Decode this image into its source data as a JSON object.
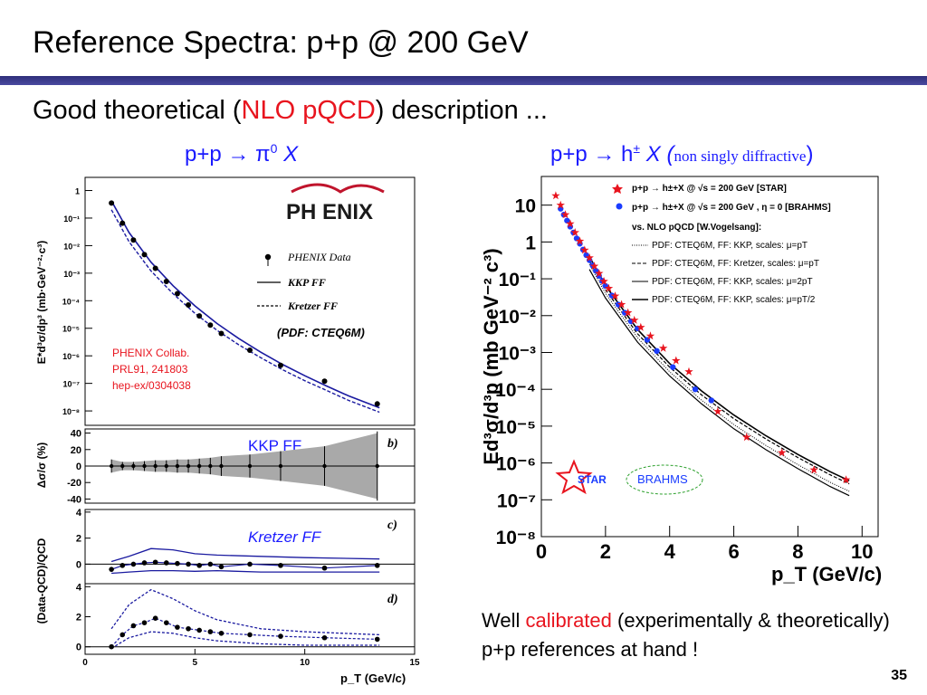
{
  "slide": {
    "title": "Reference Spectra: p+p @ 200 GeV",
    "subtitle_pre": "Good theoretical (",
    "subtitle_hl": "NLO pQCD",
    "subtitle_post": ") description ...",
    "footer_pre": "Well ",
    "footer_hl": "calibrated",
    "footer_post": " (experimentally & theoretically) p+p references at hand !",
    "page_number": "35",
    "colors": {
      "accent_red": "#e8141e",
      "panel_label_blue": "#1a1aff",
      "title_rule": "#2f2f7a"
    }
  },
  "left_panel": {
    "label_prefix": "p+p → π",
    "label_sup": "0",
    "label_suffix": " X",
    "logo_text": "PH ENIX",
    "legend": {
      "data": "PHENIX Data",
      "kkp": "KKP FF",
      "kretzer": "Kretzer FF",
      "pdf": "(PDF: CTEQ6M)"
    },
    "citation": [
      "PHENIX Collab.",
      "PRL91, 241803",
      "hep-ex/0304038"
    ],
    "ylabel_main": "E*d³σ/dp³ (mb·GeV⁻²·c³)",
    "ylabel_b": "Δσ/σ (%)",
    "ylabel_cd": "(Data-QCD)/QCD",
    "xlabel": "p_T (GeV/c)",
    "subpanel_b_label": "KKP  FF",
    "subpanel_c_label": "Kretzer FF",
    "panel_tags": [
      "b)",
      "c)",
      "d)"
    ]
  },
  "right_panel": {
    "label_prefix": "p+p → h",
    "label_sup": "±",
    "label_suffix": " X (",
    "label_small": "non singly diffractive",
    "label_close": ")",
    "ylabel": "Ed³σ/d³p (mb GeV⁻² c³)",
    "xlabel": "p_T (GeV/c)",
    "legend": [
      "p+p → h±+X @ √s = 200 GeV [STAR]",
      "p+p → h±+X @ √s = 200 GeV , η = 0 [BRAHMS]",
      "vs. NLO pQCD [W.Vogelsang]:",
      "PDF: CTEQ6M, FF: KKP, scales: μ=pT",
      "PDF: CTEQ6M, FF: Kretzer, scales: μ=pT",
      "PDF: CTEQ6M, FF: KKP, scales: μ=2pT",
      "PDF: CTEQ6M, FF: KKP, scales: μ=pT/2"
    ],
    "logos": {
      "star": "STAR",
      "brahms": "BRAHMS"
    }
  },
  "chart_data": [
    {
      "type": "scatter",
      "title": "p+p → π0 X",
      "xlabel": "pT (GeV/c)",
      "ylabel": "E*d3σ/dp3 (mb·GeV-2·c3)",
      "yscale": "log",
      "xlim": [
        0,
        15
      ],
      "ylim": [
        3e-09,
        3
      ],
      "x_ticks": [
        0,
        5,
        10,
        15
      ],
      "y_ticks": [
        "1",
        "10⁻¹",
        "10⁻²",
        "10⁻³",
        "10⁻⁴",
        "10⁻⁵",
        "10⁻⁶",
        "10⁻⁷",
        "10⁻⁸"
      ],
      "series": [
        {
          "name": "PHENIX Data",
          "x": [
            1.2,
            1.7,
            2.2,
            2.7,
            3.2,
            3.7,
            4.2,
            4.7,
            5.2,
            5.7,
            6.2,
            7.5,
            8.9,
            10.9,
            13.3
          ],
          "y": [
            0.35,
            0.065,
            0.016,
            0.0047,
            0.0015,
            0.0005,
            0.00018,
            7e-05,
            2.8e-05,
            1.3e-05,
            6.5e-06,
            1.6e-06,
            4.5e-07,
            1.2e-07,
            1.8e-08
          ]
        },
        {
          "name": "KKP FF",
          "x": [
            1.2,
            2,
            3,
            4,
            5,
            6,
            7,
            8,
            9,
            10,
            11,
            12,
            13.4
          ],
          "y": [
            0.42,
            0.03,
            0.0025,
            0.00035,
            6.5e-05,
            1.5e-05,
            4.2e-06,
            1.35e-06,
            4.8e-07,
            1.9e-07,
            8e-08,
            3.5e-08,
            1.3e-08
          ]
        },
        {
          "name": "Kretzer FF",
          "x": [
            1.2,
            2,
            3,
            4,
            5,
            6,
            7,
            8,
            9,
            10,
            11,
            12,
            13.4
          ],
          "y": [
            0.2,
            0.014,
            0.0012,
            0.00018,
            3.5e-05,
            8.5e-06,
            2.5e-06,
            8.5e-07,
            3.1e-07,
            1.25e-07,
            5.5e-08,
            2.4e-08,
            9e-09
          ]
        }
      ]
    },
    {
      "type": "scatter",
      "title": "b) KKP FF",
      "ylabel": "Δσ/σ (%)",
      "ylim": [
        -45,
        45
      ],
      "y_ticks": [
        40,
        20,
        0,
        -20,
        -40
      ],
      "series": [
        {
          "name": "PHENIX Data",
          "x": [
            1.2,
            1.7,
            2.2,
            2.7,
            3.2,
            3.7,
            4.2,
            4.7,
            5.2,
            5.7,
            6.2,
            7.5,
            8.9,
            10.9,
            13.3
          ],
          "y": [
            0,
            0,
            0,
            0,
            0,
            0,
            0,
            0,
            0,
            0,
            0,
            0,
            0,
            0,
            0
          ],
          "err": [
            8,
            5,
            5,
            6,
            7,
            7,
            8,
            8,
            9,
            10,
            12,
            14,
            18,
            24,
            42
          ]
        }
      ]
    },
    {
      "type": "line",
      "title": "c) Kretzer FF",
      "ylabel": "(Data-QCD)/QCD",
      "ylim": [
        -1.5,
        4.2
      ],
      "y_ticks": [
        4,
        2,
        0
      ],
      "series": [
        {
          "name": "PHENIX Data",
          "x": [
            1.2,
            1.7,
            2.2,
            2.7,
            3.2,
            3.7,
            4.2,
            4.7,
            5.2,
            5.7,
            6.2,
            7.5,
            8.9,
            10.9,
            13.3
          ],
          "y": [
            -0.4,
            -0.1,
            0,
            0.1,
            0.15,
            0.1,
            0.05,
            0,
            -0.1,
            0,
            -0.2,
            0,
            -0.1,
            -0.3,
            -0.1
          ]
        },
        {
          "name": "upper band",
          "x": [
            1.2,
            2,
            3,
            4,
            5,
            6,
            8,
            10,
            13.4
          ],
          "y": [
            0.2,
            0.6,
            1.2,
            1.1,
            0.8,
            0.7,
            0.6,
            0.5,
            0.4
          ]
        },
        {
          "name": "lower band",
          "x": [
            1.2,
            2,
            3,
            4,
            5,
            6,
            8,
            10,
            13.4
          ],
          "y": [
            -0.7,
            -0.6,
            -0.5,
            -0.5,
            -0.55,
            -0.5,
            -0.6,
            -0.6,
            -0.6
          ]
        }
      ]
    },
    {
      "type": "line",
      "title": "d)",
      "ylabel": "(Data-QCD)/QCD",
      "xlabel": "pT (GeV/c)",
      "ylim": [
        -0.5,
        4.2
      ],
      "y_ticks": [
        4,
        2,
        0
      ],
      "x_ticks": [
        0,
        5,
        10,
        15
      ],
      "series": [
        {
          "name": "PHENIX Data",
          "x": [
            1.2,
            1.7,
            2.2,
            2.7,
            3.2,
            3.7,
            4.2,
            4.7,
            5.2,
            5.7,
            6.2,
            7.5,
            8.9,
            10.9,
            13.3
          ],
          "y": [
            0,
            0.8,
            1.4,
            1.6,
            1.9,
            1.6,
            1.3,
            1.2,
            1.1,
            1.0,
            0.9,
            0.8,
            0.7,
            0.6,
            0.5
          ]
        },
        {
          "name": "upper band",
          "x": [
            1.2,
            2,
            3,
            4,
            5,
            6,
            8,
            10,
            13.4
          ],
          "y": [
            1.2,
            2.8,
            3.8,
            3.2,
            2.4,
            1.8,
            1.2,
            1.0,
            0.8
          ]
        },
        {
          "name": "lower band",
          "x": [
            1.2,
            2,
            3,
            4,
            5,
            6,
            8,
            10,
            13.4
          ],
          "y": [
            -0.1,
            0.6,
            1.0,
            0.9,
            0.6,
            0.4,
            0.2,
            0.1,
            0.1
          ]
        }
      ]
    },
    {
      "type": "scatter",
      "title": "p+p → h± X (non singly diffractive)",
      "xlabel": "pT (GeV/c)",
      "ylabel": "Ed3σ/d3p (mb GeV-2 c3)",
      "yscale": "log",
      "xlim": [
        0,
        10.5
      ],
      "ylim": [
        1e-08,
        60
      ],
      "x_ticks": [
        0,
        2,
        4,
        6,
        8,
        10
      ],
      "y_ticks": [
        "10",
        "1",
        "10⁻¹",
        "10⁻²",
        "10⁻³",
        "10⁻⁴",
        "10⁻⁵",
        "10⁻⁶",
        "10⁻⁷",
        "10⁻⁸"
      ],
      "series": [
        {
          "name": "STAR",
          "x": [
            0.45,
            0.6,
            0.75,
            0.9,
            1.05,
            1.2,
            1.35,
            1.5,
            1.65,
            1.8,
            1.95,
            2.1,
            2.3,
            2.5,
            2.7,
            2.9,
            3.1,
            3.4,
            3.8,
            4.2,
            4.6,
            5.5,
            6.4,
            7.5,
            8.5,
            9.5
          ],
          "y": [
            18,
            10,
            5.5,
            3.1,
            1.8,
            1.05,
            0.6,
            0.37,
            0.22,
            0.14,
            0.085,
            0.055,
            0.034,
            0.02,
            0.012,
            0.0075,
            0.0048,
            0.0028,
            0.0013,
            0.0006,
            0.0003,
            2.5e-05,
            5e-06,
            1.9e-06,
            6.5e-07,
            3.5e-07
          ]
        },
        {
          "name": "BRAHMS",
          "x": [
            0.6,
            0.7,
            0.8,
            0.9,
            1.0,
            1.1,
            1.2,
            1.3,
            1.4,
            1.5,
            1.6,
            1.7,
            1.8,
            1.9,
            2.0,
            2.2,
            2.4,
            2.6,
            2.8,
            3.0,
            3.3,
            3.6,
            4.1,
            4.8,
            5.3
          ],
          "y": [
            8,
            5.5,
            3.8,
            2.6,
            1.8,
            1.25,
            0.9,
            0.62,
            0.44,
            0.32,
            0.23,
            0.165,
            0.12,
            0.088,
            0.064,
            0.035,
            0.02,
            0.012,
            0.007,
            0.0045,
            0.0022,
            0.0011,
            0.0004,
            0.0001,
            5e-05
          ]
        },
        {
          "name": "KKP μ=pT",
          "x": [
            1.5,
            2,
            3,
            4,
            5,
            6,
            7,
            8,
            9,
            9.6
          ],
          "y": [
            0.25,
            0.04,
            0.0025,
            0.0003,
            5e-05,
            1.1e-05,
            3e-06,
            9e-07,
            3e-07,
            1.7e-07
          ]
        },
        {
          "name": "Kretzer μ=pT",
          "x": [
            1.5,
            2,
            3,
            4,
            5,
            6,
            7,
            8,
            9,
            9.6
          ],
          "y": [
            0.3,
            0.05,
            0.0032,
            0.0004,
            7e-05,
            1.6e-05,
            4.5e-06,
            1.4e-06,
            4.8e-07,
            2.7e-07
          ]
        },
        {
          "name": "KKP μ=2pT",
          "x": [
            1.5,
            2,
            3,
            4,
            5,
            6,
            7,
            8,
            9,
            9.6
          ],
          "y": [
            0.18,
            0.03,
            0.0019,
            0.00023,
            4e-05,
            8.5e-06,
            2.3e-06,
            7e-07,
            2.3e-07,
            1.3e-07
          ]
        },
        {
          "name": "KKP μ=pT/2",
          "x": [
            1.5,
            2,
            3,
            4,
            5,
            6,
            7,
            8,
            9,
            9.6
          ],
          "y": [
            0.4,
            0.065,
            0.0042,
            0.0005,
            9e-05,
            2e-05,
            5.5e-06,
            1.7e-06,
            5.8e-07,
            3.3e-07
          ]
        }
      ]
    }
  ]
}
